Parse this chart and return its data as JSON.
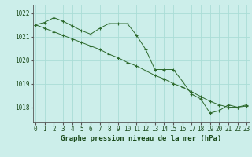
{
  "line1_x": [
    0,
    1,
    2,
    3,
    4,
    5,
    6,
    7,
    8,
    9,
    10,
    11,
    12,
    13,
    14,
    15,
    16,
    17,
    18,
    19,
    20,
    21,
    22,
    23
  ],
  "line1_y": [
    1021.5,
    1021.6,
    1021.8,
    1021.65,
    1021.45,
    1021.25,
    1021.1,
    1021.35,
    1021.55,
    1021.55,
    1021.55,
    1021.05,
    1020.45,
    1019.6,
    1019.6,
    1019.6,
    1019.1,
    1018.55,
    1018.35,
    1017.75,
    1017.85,
    1018.1,
    1018.0,
    1018.1
  ],
  "line2_x": [
    0,
    1,
    2,
    3,
    4,
    5,
    6,
    7,
    8,
    9,
    10,
    11,
    12,
    13,
    14,
    15,
    16,
    17,
    18,
    19,
    20,
    21,
    22,
    23
  ],
  "line2_y": [
    1021.5,
    1021.35,
    1021.2,
    1021.05,
    1020.9,
    1020.75,
    1020.6,
    1020.45,
    1020.25,
    1020.1,
    1019.9,
    1019.75,
    1019.55,
    1019.35,
    1019.2,
    1019.0,
    1018.85,
    1018.65,
    1018.45,
    1018.25,
    1018.1,
    1018.0,
    1018.0,
    1018.05
  ],
  "line_color": "#2d6a2d",
  "bg_color": "#cceeea",
  "grid_color": "#aaddd6",
  "xlabel": "Graphe pression niveau de la mer (hPa)",
  "yticks": [
    1018,
    1019,
    1020,
    1021,
    1022
  ],
  "xticks": [
    0,
    1,
    2,
    3,
    4,
    5,
    6,
    7,
    8,
    9,
    10,
    11,
    12,
    13,
    14,
    15,
    16,
    17,
    18,
    19,
    20,
    21,
    22,
    23
  ],
  "ylim": [
    1017.35,
    1022.35
  ],
  "xlim": [
    -0.3,
    23.3
  ]
}
